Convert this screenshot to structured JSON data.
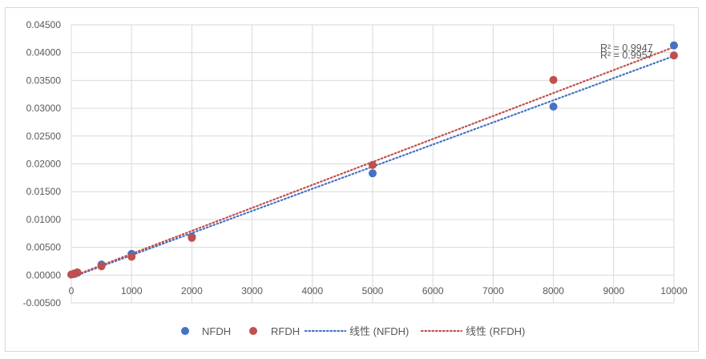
{
  "chart_data": {
    "type": "scatter",
    "title": "",
    "xlabel": "",
    "ylabel": "",
    "xlim": [
      0,
      10000
    ],
    "ylim": [
      -0.005,
      0.045
    ],
    "x_ticks": [
      "0",
      "1000",
      "2000",
      "3000",
      "4000",
      "5000",
      "6000",
      "7000",
      "8000",
      "9000",
      "10000"
    ],
    "y_ticks": [
      "0.04500",
      "0.04000",
      "0.03500",
      "0.03000",
      "0.02500",
      "0.02000",
      "0.01500",
      "0.01000",
      "0.00500",
      "0.00000",
      "-0.00500"
    ],
    "grid": true,
    "legend_position": "bottom",
    "series": [
      {
        "name": "NFDH",
        "color": "#4472c4",
        "points": [
          [
            0,
            0.0001
          ],
          [
            50,
            0.0002
          ],
          [
            100,
            0.0004
          ],
          [
            500,
            0.0019
          ],
          [
            1000,
            0.0038
          ],
          [
            2000,
            0.0069
          ],
          [
            5000,
            0.0183
          ],
          [
            8000,
            0.0303
          ],
          [
            10000,
            0.0413
          ]
        ]
      },
      {
        "name": "RFDH",
        "color": "#c0504d",
        "points": [
          [
            0,
            0.0001
          ],
          [
            50,
            0.0003
          ],
          [
            100,
            0.0005
          ],
          [
            500,
            0.0016
          ],
          [
            1000,
            0.0033
          ],
          [
            2000,
            0.0067
          ],
          [
            5000,
            0.0198
          ],
          [
            8000,
            0.0351
          ],
          [
            10000,
            0.0395
          ]
        ]
      }
    ],
    "trendlines": [
      {
        "name": "线性 (NFDH)",
        "color": "#4472c4",
        "from": [
          0,
          -0.0004
        ],
        "to": [
          10000,
          0.0394
        ],
        "r2": "R² = 0.9947"
      },
      {
        "name": "线性 (RFDH)",
        "color": "#c0504d",
        "from": [
          0,
          -0.0003
        ],
        "to": [
          10000,
          0.041
        ],
        "r2": "R² = 0.9957"
      }
    ]
  }
}
